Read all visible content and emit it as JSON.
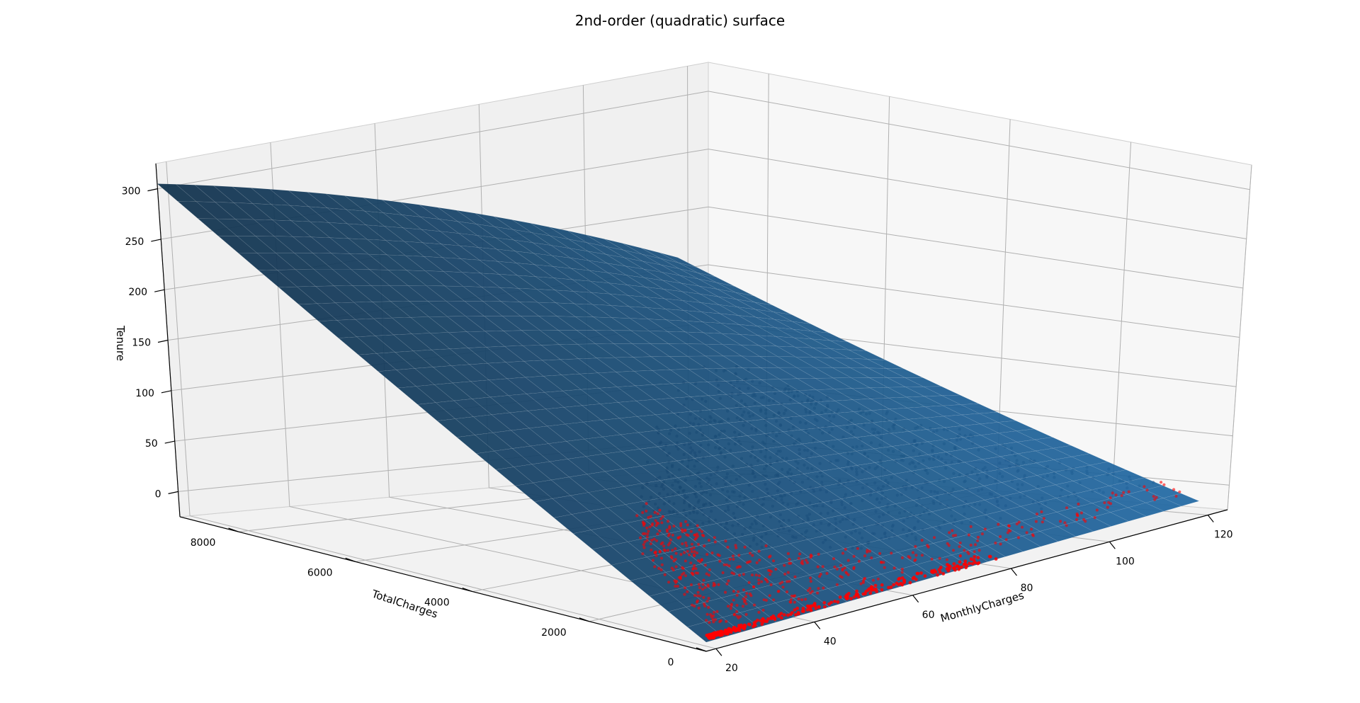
{
  "chart_data": {
    "type": "surface3d",
    "title": "2nd-order (quadratic) surface",
    "xlabel": "MonthlyCharges",
    "ylabel": "TotalCharges",
    "zlabel": "Tenure",
    "xlim": [
      18,
      124
    ],
    "ylim": [
      0,
      9000
    ],
    "zlim": [
      -25,
      325
    ],
    "xticks": [
      "20",
      "40",
      "60",
      "80",
      "100",
      "120"
    ],
    "yticks": [
      "0",
      "2000",
      "4000",
      "6000",
      "8000"
    ],
    "zticks": [
      "0",
      "50",
      "100",
      "150",
      "200",
      "250",
      "300"
    ],
    "surface": {
      "corners": [
        {
          "x": 18,
          "y": 0,
          "z": -15
        },
        {
          "x": 118,
          "y": 0,
          "z": -8
        },
        {
          "x": 18,
          "y": 9000,
          "z": 305
        },
        {
          "x": 118,
          "y": 9000,
          "z": 160
        }
      ],
      "color": "#2f6b9a"
    },
    "scatter_color": "#ff0000",
    "series": [
      {
        "name": "",
        "note_points": "observations"
      }
    ]
  }
}
